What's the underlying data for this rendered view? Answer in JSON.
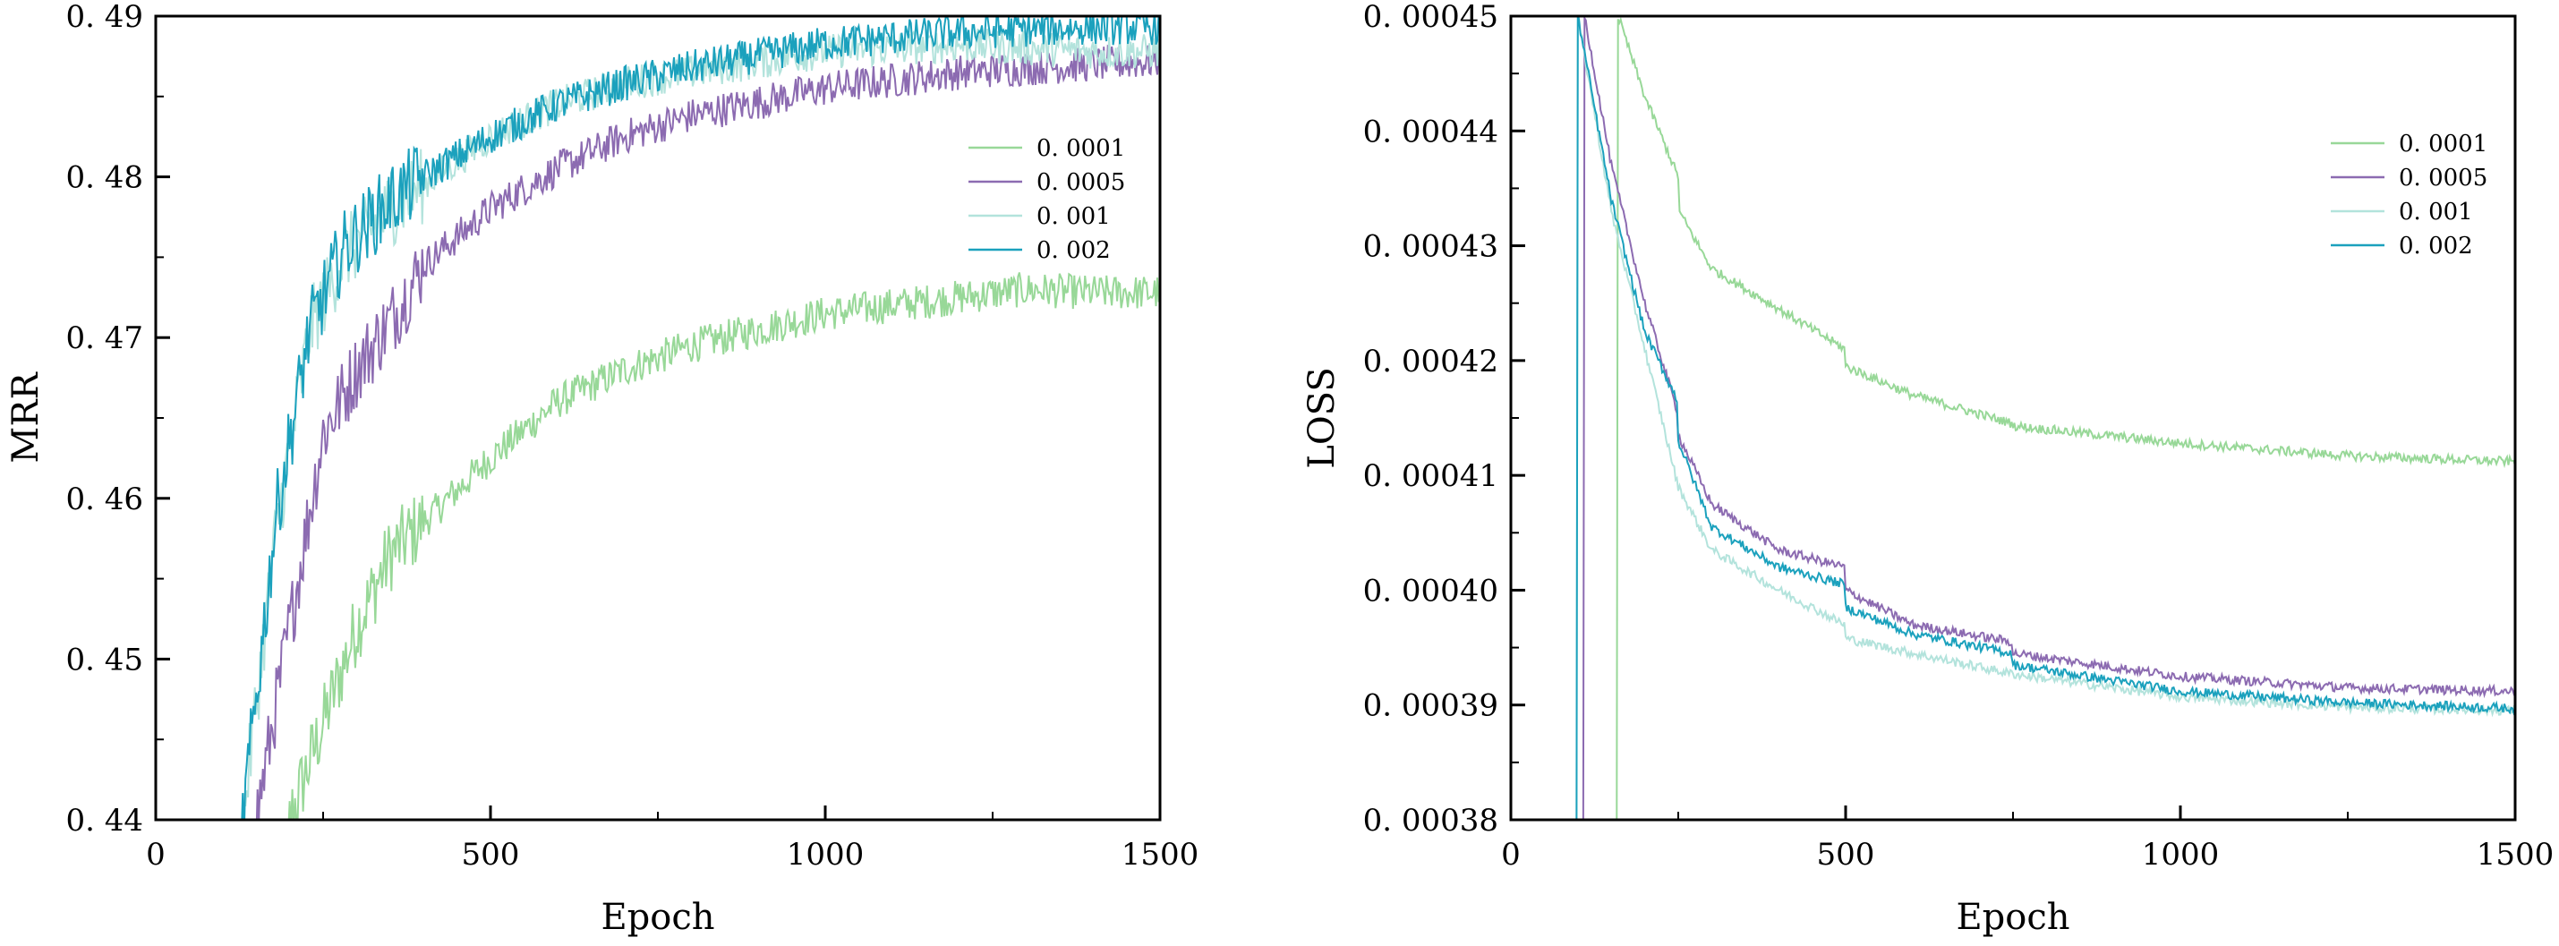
{
  "chart_data": [
    {
      "type": "line",
      "title": "",
      "xlabel": "Epoch",
      "ylabel": "MRR",
      "xlim": [
        0,
        1500
      ],
      "ylim": [
        0.44,
        0.49
      ],
      "xticks": [
        0,
        500,
        1000,
        1500
      ],
      "yticks": [
        0.44,
        0.45,
        0.46,
        0.47,
        0.48,
        0.49
      ],
      "ytick_labels": [
        "0. 44",
        "0. 45",
        "0. 46",
        "0. 47",
        "0. 48",
        "0. 49"
      ],
      "legend_position": "top-right",
      "series": [
        {
          "name": "0. 0001",
          "color": "#98d898",
          "x": [
            200,
            250,
            300,
            350,
            400,
            500,
            600,
            700,
            800,
            1000,
            1100,
            1200,
            1300,
            1400,
            1500
          ],
          "y": [
            0.44,
            0.446,
            0.452,
            0.4565,
            0.4585,
            0.4625,
            0.466,
            0.468,
            0.4695,
            0.4715,
            0.472,
            0.4725,
            0.473,
            0.4728,
            0.4728
          ]
        },
        {
          "name": "0. 0005",
          "color": "#8c6bb1",
          "x": [
            150,
            200,
            250,
            300,
            350,
            400,
            500,
            600,
            700,
            800,
            1000,
            1200,
            1400,
            1500
          ],
          "y": [
            0.44,
            0.452,
            0.464,
            0.468,
            0.471,
            0.4745,
            0.478,
            0.4805,
            0.4825,
            0.4838,
            0.4855,
            0.4865,
            0.487,
            0.4872
          ]
        },
        {
          "name": "0. 001",
          "color": "#b3e3dc",
          "x": [
            130,
            180,
            230,
            280,
            350,
            400,
            500,
            600,
            700,
            800,
            1000,
            1200,
            1400,
            1500
          ],
          "y": [
            0.44,
            0.458,
            0.4705,
            0.475,
            0.478,
            0.4795,
            0.4825,
            0.4845,
            0.4858,
            0.4865,
            0.4878,
            0.4882,
            0.4878,
            0.4878
          ]
        },
        {
          "name": "0. 002",
          "color": "#1ba1bd",
          "x": [
            130,
            180,
            230,
            280,
            350,
            400,
            500,
            600,
            700,
            800,
            1000,
            1200,
            1400,
            1500
          ],
          "y": [
            0.44,
            0.459,
            0.4705,
            0.4755,
            0.4785,
            0.48,
            0.4825,
            0.4845,
            0.4858,
            0.4868,
            0.4883,
            0.489,
            0.4893,
            0.4893
          ]
        }
      ]
    },
    {
      "type": "line",
      "title": "",
      "xlabel": "Epoch",
      "ylabel": "LOSS",
      "xlim": [
        0,
        1500
      ],
      "ylim": [
        0.00038,
        0.00045
      ],
      "xticks": [
        0,
        500,
        1000,
        1500
      ],
      "yticks": [
        0.00038,
        0.00039,
        0.0004,
        0.00041,
        0.00042,
        0.00043,
        0.00044,
        0.00045
      ],
      "ytick_labels": [
        "0. 00038",
        "0. 00039",
        "0. 00040",
        "0. 00041",
        "0. 00042",
        "0. 00043",
        "0. 00044",
        "0. 00045"
      ],
      "legend_position": "top-right",
      "series": [
        {
          "name": "0. 0001",
          "color": "#98d898",
          "x": [
            160,
            200,
            250,
            251,
            300,
            400,
            499,
            500,
            600,
            750,
            751,
            1000,
            1250,
            1500
          ],
          "y": [
            0.00045,
            0.000443,
            0.000436,
            0.000433,
            0.000428,
            0.0004245,
            0.000421,
            0.0004195,
            0.000417,
            0.0004145,
            0.0004143,
            0.0004128,
            0.0004117,
            0.0004112
          ]
        },
        {
          "name": "0. 0005",
          "color": "#8c6bb1",
          "x": [
            110,
            150,
            200,
            249,
            250,
            300,
            400,
            499,
            500,
            600,
            749,
            750,
            1000,
            1250,
            1500
          ],
          "y": [
            0.00045,
            0.000437,
            0.000425,
            0.0004155,
            0.0004135,
            0.0004075,
            0.0004035,
            0.000402,
            0.0004,
            0.000397,
            0.0003955,
            0.0003945,
            0.0003925,
            0.0003915,
            0.0003912
          ]
        },
        {
          "name": "0. 001",
          "color": "#b3e3dc",
          "x": [
            100,
            150,
            200,
            250,
            300,
            400,
            499,
            500,
            600,
            750,
            1000,
            1250,
            1500
          ],
          "y": [
            0.00045,
            0.000433,
            0.000421,
            0.000409,
            0.0004035,
            0.0004,
            0.000397,
            0.0003958,
            0.0003945,
            0.0003927,
            0.0003907,
            0.0003898,
            0.0003895
          ]
        },
        {
          "name": "0. 002",
          "color": "#1ba1bd",
          "x": [
            100,
            150,
            200,
            249,
            250,
            300,
            400,
            499,
            500,
            600,
            749,
            750,
            1000,
            1250,
            1500
          ],
          "y": [
            0.00045,
            0.000434,
            0.0004225,
            0.0004165,
            0.000413,
            0.0004055,
            0.000402,
            0.0004005,
            0.0003985,
            0.0003962,
            0.0003945,
            0.0003935,
            0.0003912,
            0.0003902,
            0.0003897
          ]
        }
      ]
    }
  ]
}
